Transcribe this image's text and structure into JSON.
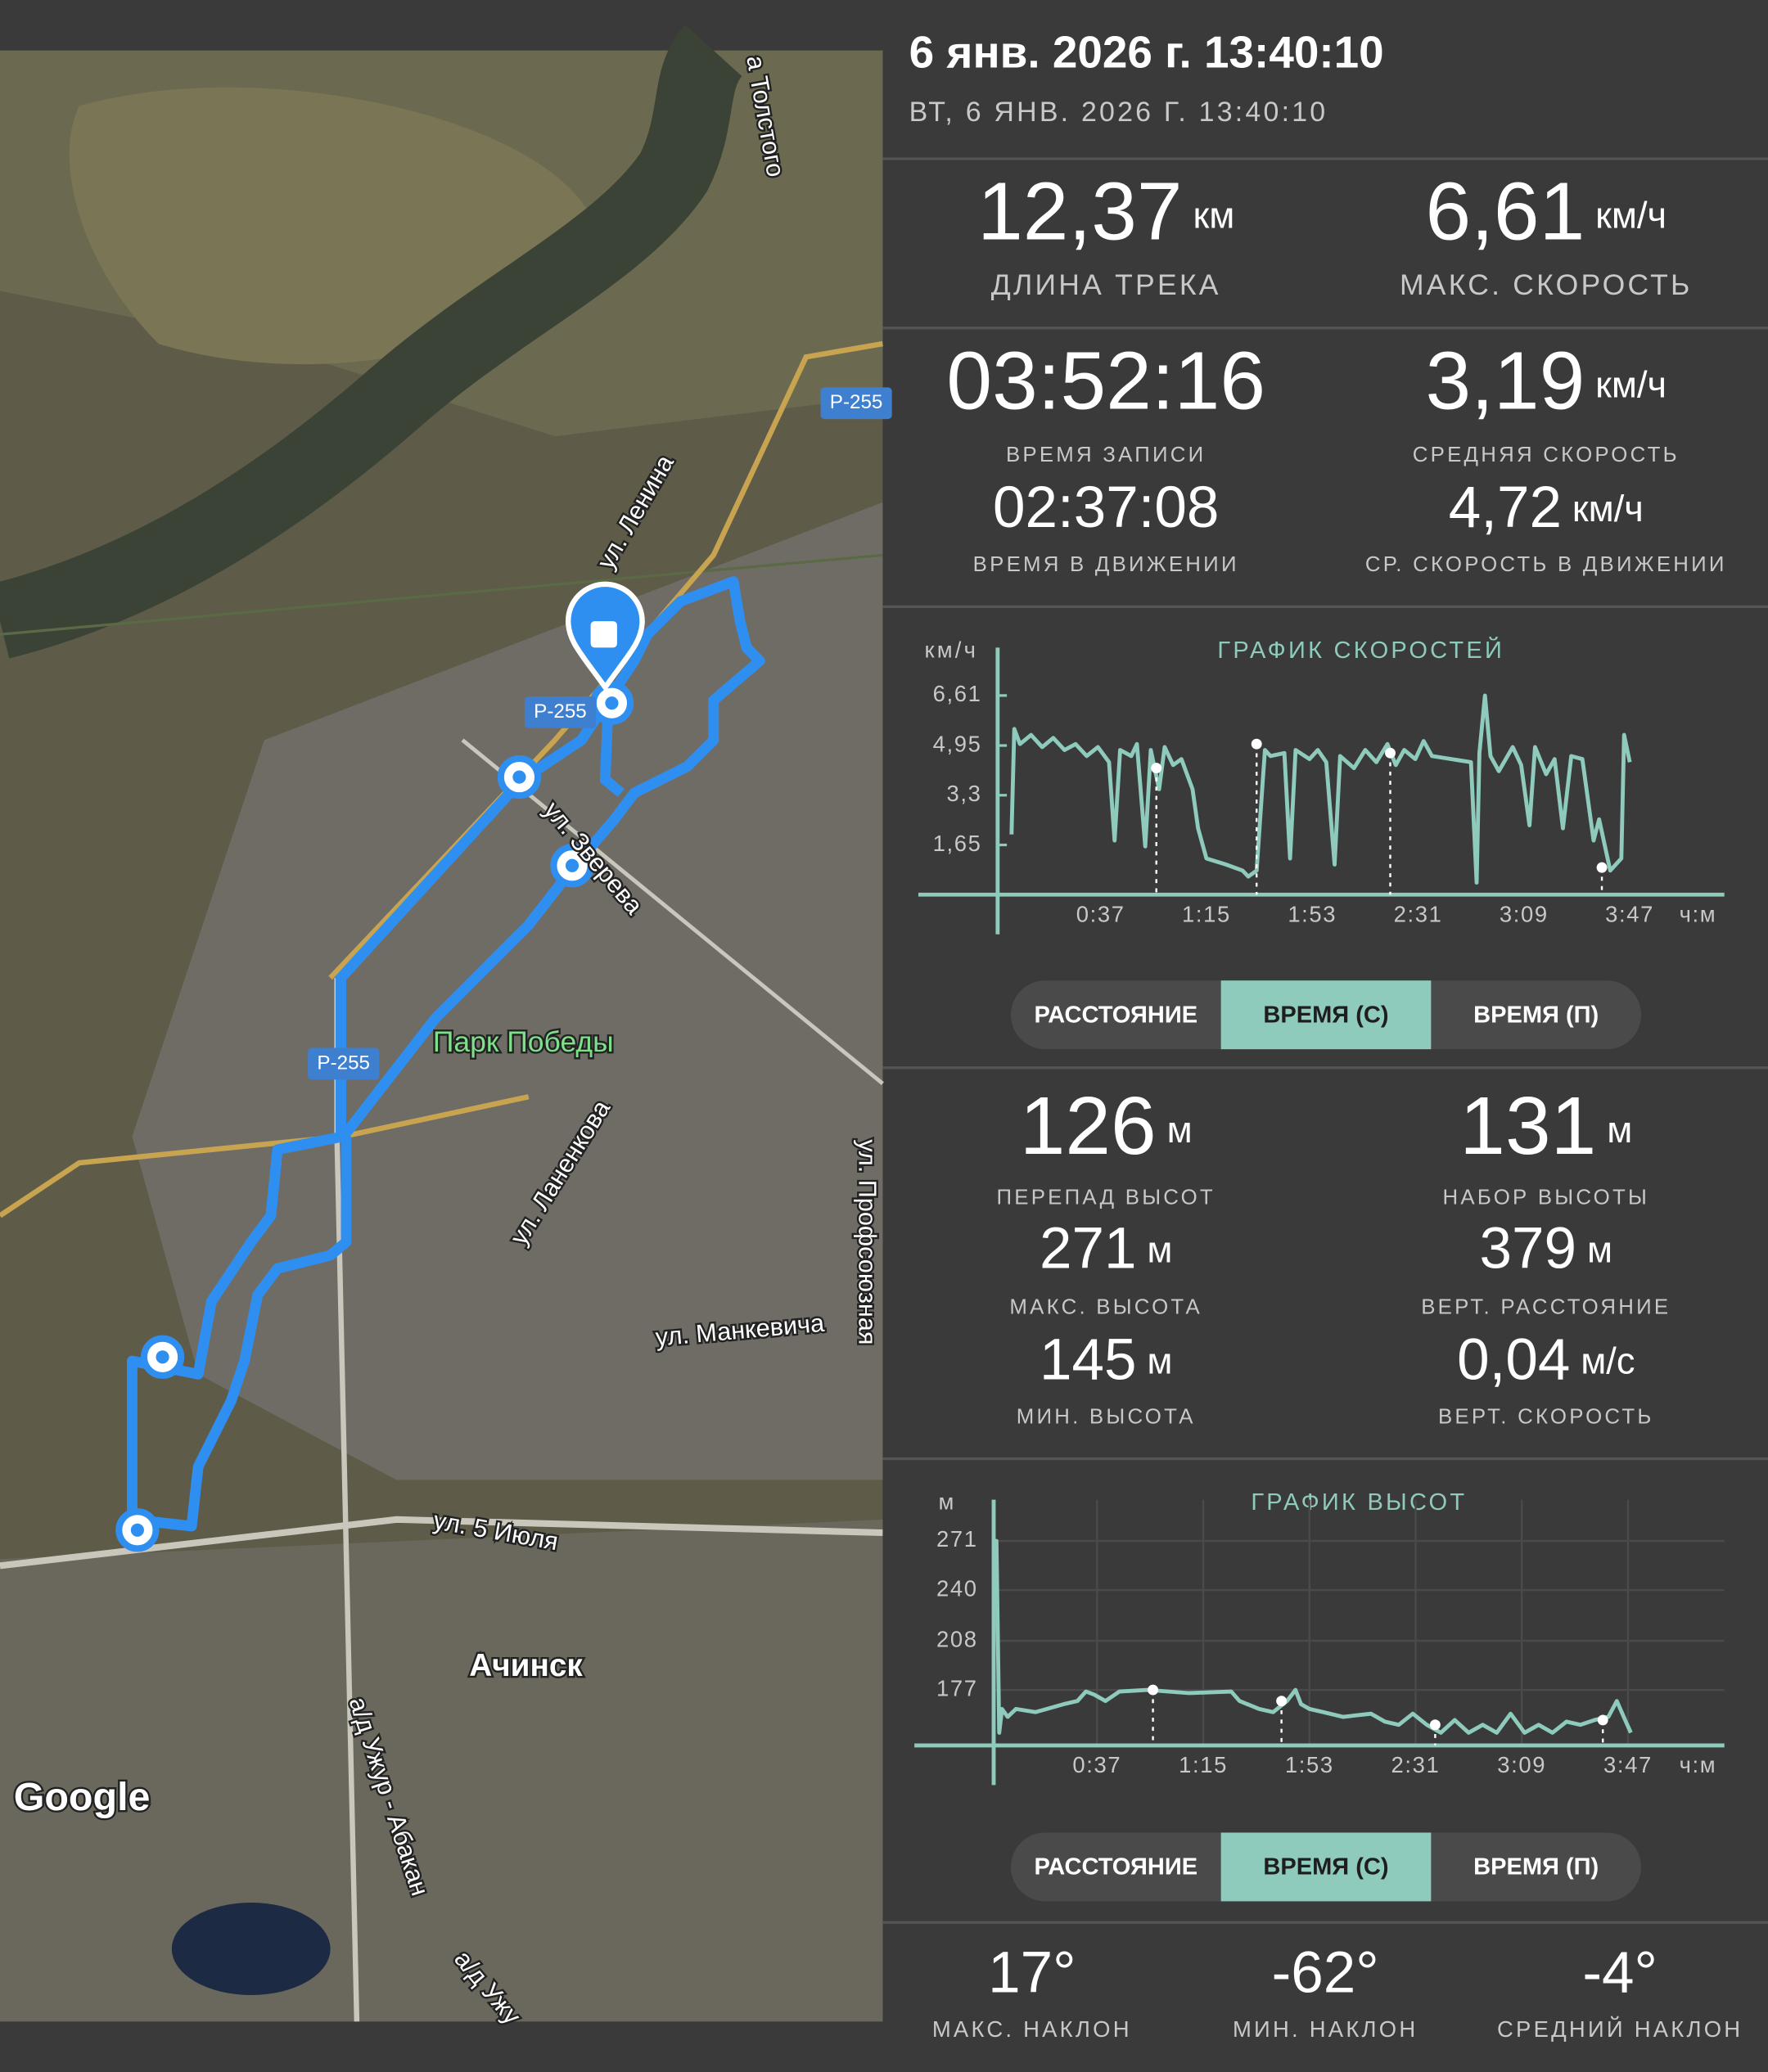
{
  "header": {
    "title": "6 янв. 2026 г. 13:40:10",
    "subtitle": "ВТ, 6 ЯНВ. 2026 Г. 13:40:10"
  },
  "map": {
    "labels": [
      "а Толстого",
      "Р-255",
      "Р-255",
      "Р-255",
      "ул. Ленина",
      "ул. Зверева",
      "Парк Победы",
      "ул. Ланенкова",
      "ул. Профсоюзная",
      "ул. Манкевича",
      "ул. 5 Июля",
      "Ачинск",
      "а/д Ужур - Абакан",
      "а/д Ужу"
    ],
    "attribution": "Google"
  },
  "track_stats": [
    {
      "value": "12,37",
      "unit": "км",
      "label": "ДЛИНА ТРЕКА"
    },
    {
      "value": "6,61",
      "unit": "км/ч",
      "label": "МАКС. СКОРОСТЬ"
    },
    {
      "value": "03:52:16",
      "label": "ВРЕМЯ ЗАПИСИ"
    },
    {
      "value": "3,19",
      "unit": "км/ч",
      "label": "СРЕДНЯЯ СКОРОСТЬ"
    },
    {
      "value": "02:37:08",
      "label": "ВРЕМЯ В ДВИЖЕНИИ"
    },
    {
      "value": "4,72",
      "unit": "км/ч",
      "label": "СР. СКОРОСТЬ В ДВИЖЕНИИ"
    }
  ],
  "chart_data": [
    {
      "type": "line",
      "title": "ГРАФИК СКОРОСТЕЙ",
      "y_unit": "км/ч",
      "x_unit": "ч:м",
      "color": "#8ecbbd",
      "grid": false,
      "x": [
        5,
        6,
        8,
        12,
        16,
        20,
        24,
        28,
        32,
        36,
        40,
        42,
        44,
        48,
        50,
        53,
        55,
        58,
        60,
        63,
        66,
        70,
        72,
        75,
        82,
        88,
        90,
        93,
        95,
        96,
        98,
        103,
        105,
        107,
        112,
        115,
        118,
        121,
        123,
        128,
        132,
        136,
        140,
        143,
        146,
        150,
        153,
        156,
        170,
        172,
        173,
        175,
        177,
        180,
        185,
        188,
        191,
        193,
        197,
        200,
        203,
        206,
        210,
        214,
        216,
        220,
        224,
        225,
        227
      ],
      "values": [
        2.0,
        5.5,
        5.0,
        5.3,
        4.9,
        5.2,
        4.8,
        5.0,
        4.6,
        4.9,
        4.4,
        1.8,
        4.8,
        4.6,
        5.0,
        1.6,
        4.8,
        3.5,
        4.9,
        4.3,
        4.5,
        3.5,
        2.2,
        1.2,
        1.0,
        0.8,
        0.6,
        0.8,
        3.5,
        4.8,
        4.6,
        4.7,
        1.2,
        4.8,
        4.5,
        4.8,
        4.4,
        1.0,
        4.6,
        4.2,
        4.8,
        4.4,
        5.0,
        4.3,
        4.8,
        4.5,
        5.1,
        4.6,
        4.4,
        0.4,
        4.7,
        6.61,
        4.6,
        4.1,
        4.9,
        4.3,
        2.3,
        4.9,
        4.0,
        4.5,
        2.2,
        4.6,
        4.5,
        1.8,
        2.5,
        0.8,
        1.2,
        5.3,
        4.4
      ],
      "marker_x": [
        57,
        93,
        141,
        217
      ],
      "marker_y": [
        4.2,
        5.0,
        4.7,
        0.9
      ],
      "xlim": [
        0,
        261
      ],
      "ylim": [
        0,
        8.2
      ],
      "xticks": [
        {
          "value": 37,
          "label": "0:37"
        },
        {
          "value": 75,
          "label": "1:15"
        },
        {
          "value": 113,
          "label": "1:53"
        },
        {
          "value": 151,
          "label": "2:31"
        },
        {
          "value": 189,
          "label": "3:09"
        },
        {
          "value": 227,
          "label": "3:47"
        }
      ],
      "yticks": [
        {
          "value": 6.61,
          "label": "6,61"
        },
        {
          "value": 4.95,
          "label": "4,95"
        },
        {
          "value": 3.3,
          "label": "3,3"
        },
        {
          "value": 1.65,
          "label": "1,65"
        }
      ]
    },
    {
      "type": "line",
      "title": "ГРАФИК ВЫСОТ",
      "y_unit": "м",
      "x_unit": "ч:м",
      "color": "#8ecbbd",
      "grid": true,
      "x": [
        0,
        1,
        2,
        3,
        5,
        8,
        15,
        25,
        30,
        33,
        36,
        40,
        45,
        55,
        70,
        85,
        88,
        95,
        100,
        105,
        108,
        110,
        113,
        118,
        125,
        135,
        140,
        145,
        150,
        155,
        160,
        165,
        170,
        175,
        180,
        185,
        190,
        195,
        200,
        205,
        210,
        215,
        220,
        223,
        226,
        228
      ],
      "values": [
        271,
        271,
        150,
        165,
        160,
        165,
        163,
        168,
        170,
        176,
        174,
        170,
        176,
        177,
        175,
        176,
        170,
        165,
        163,
        170,
        177,
        168,
        165,
        163,
        160,
        162,
        157,
        155,
        162,
        155,
        150,
        158,
        150,
        155,
        150,
        162,
        150,
        155,
        150,
        157,
        155,
        158,
        160,
        170,
        158,
        150
      ],
      "marker_x": [
        57,
        103,
        158,
        218
      ],
      "marker_y": [
        177,
        170,
        155,
        158
      ],
      "xlim": [
        0,
        261.5
      ],
      "ylim": [
        142,
        297
      ],
      "xticks": [
        {
          "value": 37,
          "label": "0:37"
        },
        {
          "value": 75,
          "label": "1:15"
        },
        {
          "value": 113,
          "label": "1:53"
        },
        {
          "value": 151,
          "label": "2:31"
        },
        {
          "value": 189,
          "label": "3:09"
        },
        {
          "value": 227,
          "label": "3:47"
        }
      ],
      "yticks": [
        271,
        240,
        208,
        177
      ]
    }
  ],
  "speed_tabs": {
    "options": [
      "РАССТОЯНИЕ",
      "ВРЕМЯ (С)",
      "ВРЕМЯ (П)"
    ],
    "selected": 1
  },
  "elevation_stats": [
    {
      "value": "126",
      "unit": "м",
      "label": "ПЕРЕПАД ВЫСОТ"
    },
    {
      "value": "131",
      "unit": "м",
      "label": "НАБОР ВЫСОТЫ"
    },
    {
      "value": "271",
      "unit": "м",
      "label": "МАКС. ВЫСОТА"
    },
    {
      "value": "379",
      "unit": "м",
      "label": "ВЕРТ. РАССТОЯНИЕ"
    },
    {
      "value": "145",
      "unit": "м",
      "label": "МИН. ВЫСОТА"
    },
    {
      "value": "0,04",
      "unit": "м/с",
      "label": "ВЕРТ. СКОРОСТЬ"
    }
  ],
  "elevation_tabs": {
    "options": [
      "РАССТОЯНИЕ",
      "ВРЕМЯ (С)",
      "ВРЕМЯ (П)"
    ],
    "selected": 1
  },
  "slope_stats": [
    {
      "value": "17°",
      "label": "МАКС. НАКЛОН"
    },
    {
      "value": "-62°",
      "label": "МИН. НАКЛОН"
    },
    {
      "value": "-4°",
      "label": "СРЕДНИЙ НАКЛОН"
    }
  ]
}
